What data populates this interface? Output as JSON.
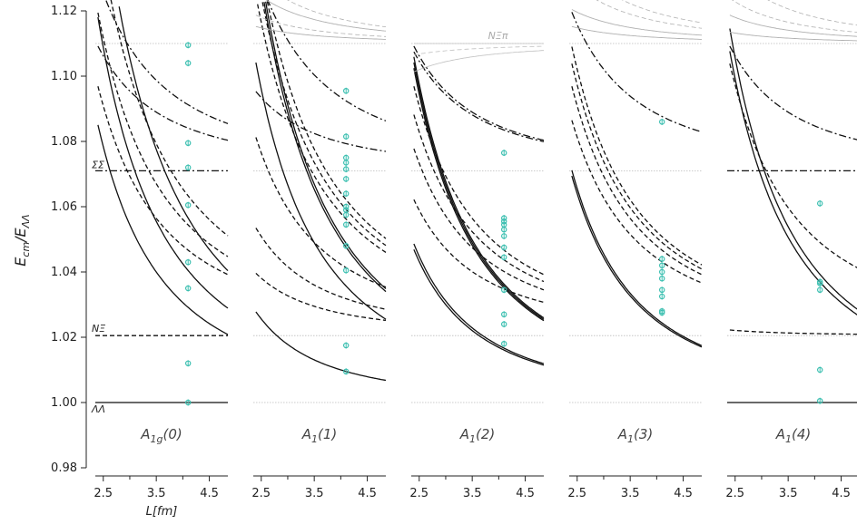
{
  "chart_data": {
    "type": "scatter",
    "ylabel": "E_cm/E_ΛΛ",
    "xlabel": "L[fm]",
    "ylim": [
      0.98,
      1.12
    ],
    "xlim": [
      2.35,
      4.85
    ],
    "yticks": [
      "0.98",
      "1.00",
      "1.02",
      "1.04",
      "1.06",
      "1.08",
      "1.10",
      "1.12"
    ],
    "xticks": [
      "2.5",
      "3.5",
      "4.5"
    ],
    "thresholds": [
      {
        "label": "ΛΛ",
        "value": 1.0
      },
      {
        "label": "NΞ",
        "value": 1.0205
      },
      {
        "label": "ΣΣ",
        "value": 1.071
      },
      {
        "label": "NΞπ",
        "value": 1.11
      }
    ],
    "point_color": "#3bbfb0",
    "panels": [
      {
        "label": "A_{1g}(0)",
        "x": 4.1,
        "points": [
          1.0,
          1.012,
          1.035,
          1.043,
          1.0605,
          1.072,
          1.0795,
          1.104,
          1.1095
        ]
      },
      {
        "label": "A_1(1)",
        "x": 4.1,
        "points": [
          1.0095,
          1.0175,
          1.0405,
          1.048,
          1.0545,
          1.0575,
          1.059,
          1.06,
          1.064,
          1.0685,
          1.0715,
          1.0735,
          1.075,
          1.0815,
          1.0955
        ]
      },
      {
        "label": "A_1(2)",
        "x": 4.1,
        "points": [
          1.018,
          1.024,
          1.027,
          1.0345,
          1.0445,
          1.0475,
          1.051,
          1.053,
          1.0545,
          1.0555,
          1.0565,
          1.0765
        ]
      },
      {
        "label": "A_1(3)",
        "x": 4.1,
        "points": [
          1.0275,
          1.028,
          1.0325,
          1.0345,
          1.038,
          1.04,
          1.042,
          1.044,
          1.086
        ]
      },
      {
        "label": "A_1(4)",
        "x": 4.1,
        "points": [
          1.0005,
          1.01,
          1.0345,
          1.0365,
          1.037,
          1.061
        ]
      }
    ]
  }
}
